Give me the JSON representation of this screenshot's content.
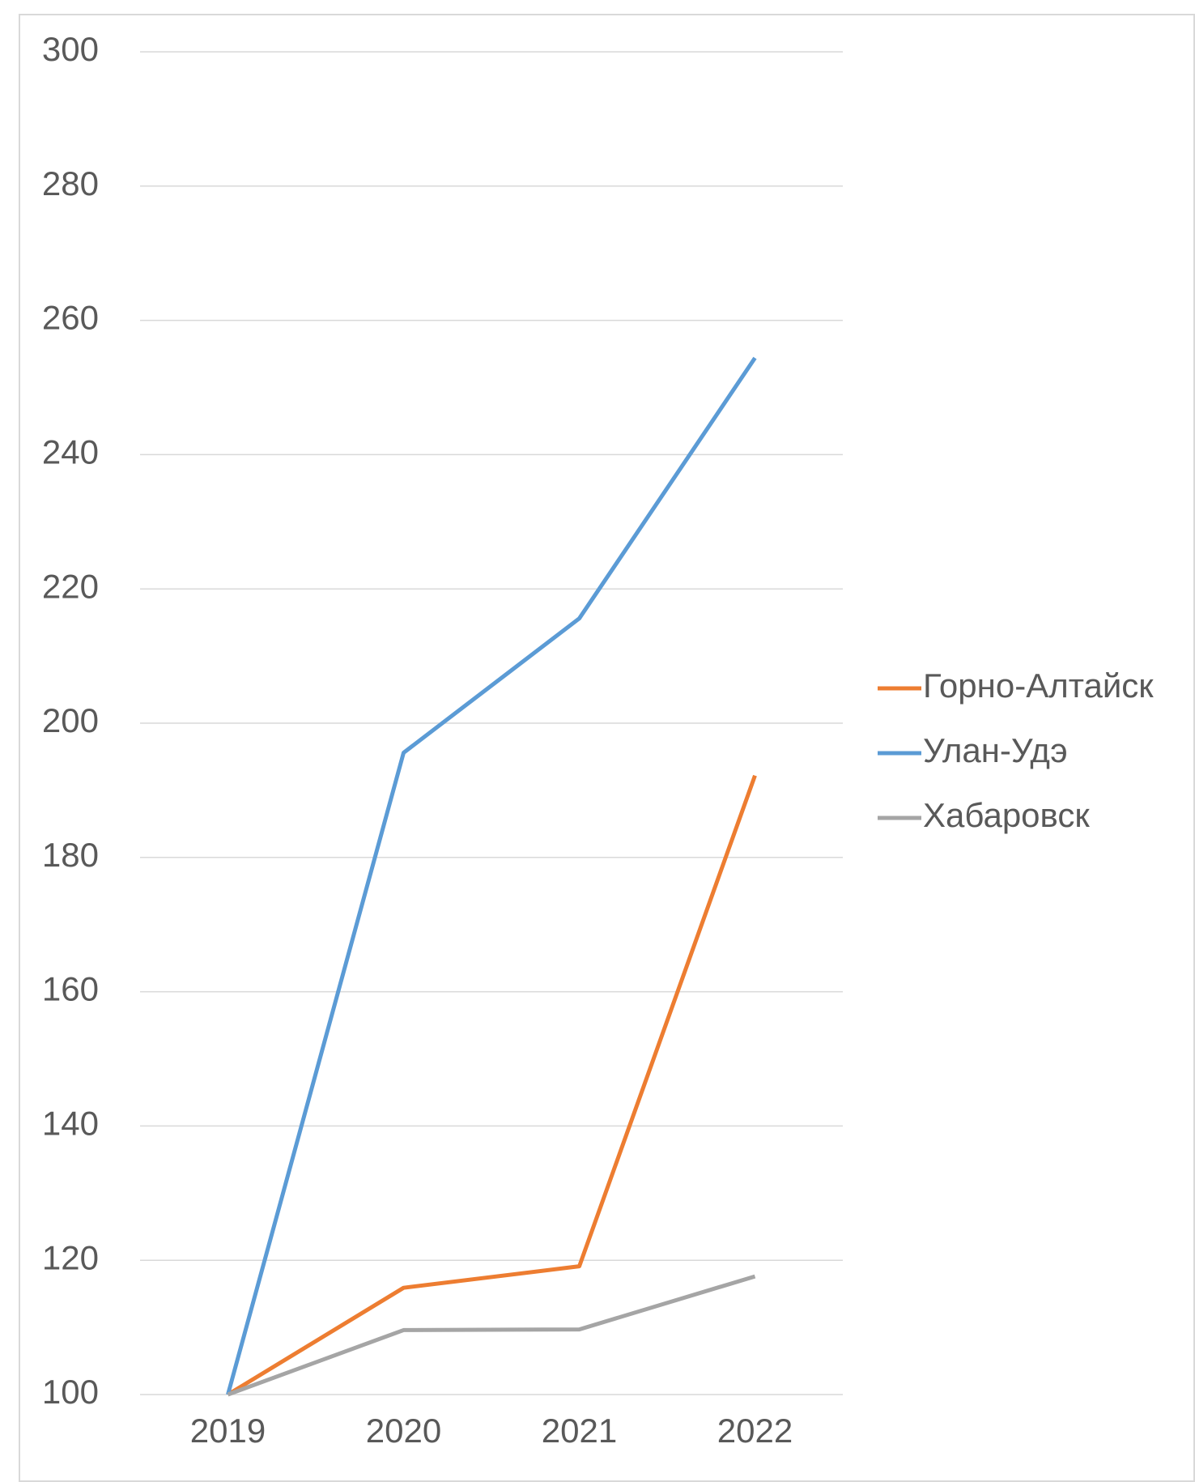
{
  "chart_data": {
    "type": "line",
    "categories": [
      "2019",
      "2020",
      "2021",
      "2022"
    ],
    "series": [
      {
        "name": "Горно-Алтайск",
        "color": "#ed7d31",
        "values": [
          100,
          115.9,
          119.1,
          192.2
        ]
      },
      {
        "name": "Улан-Удэ",
        "color": "#5b9bd5",
        "values": [
          100,
          195.6,
          215.6,
          254.4
        ]
      },
      {
        "name": "Хабаровск",
        "color": "#a5a5a5",
        "values": [
          100,
          109.6,
          109.7,
          117.6
        ]
      }
    ],
    "ylim": [
      100,
      300
    ],
    "yticks": [
      100,
      120,
      140,
      160,
      180,
      200,
      220,
      240,
      260,
      280,
      300
    ],
    "grid": true,
    "legend": "right"
  }
}
